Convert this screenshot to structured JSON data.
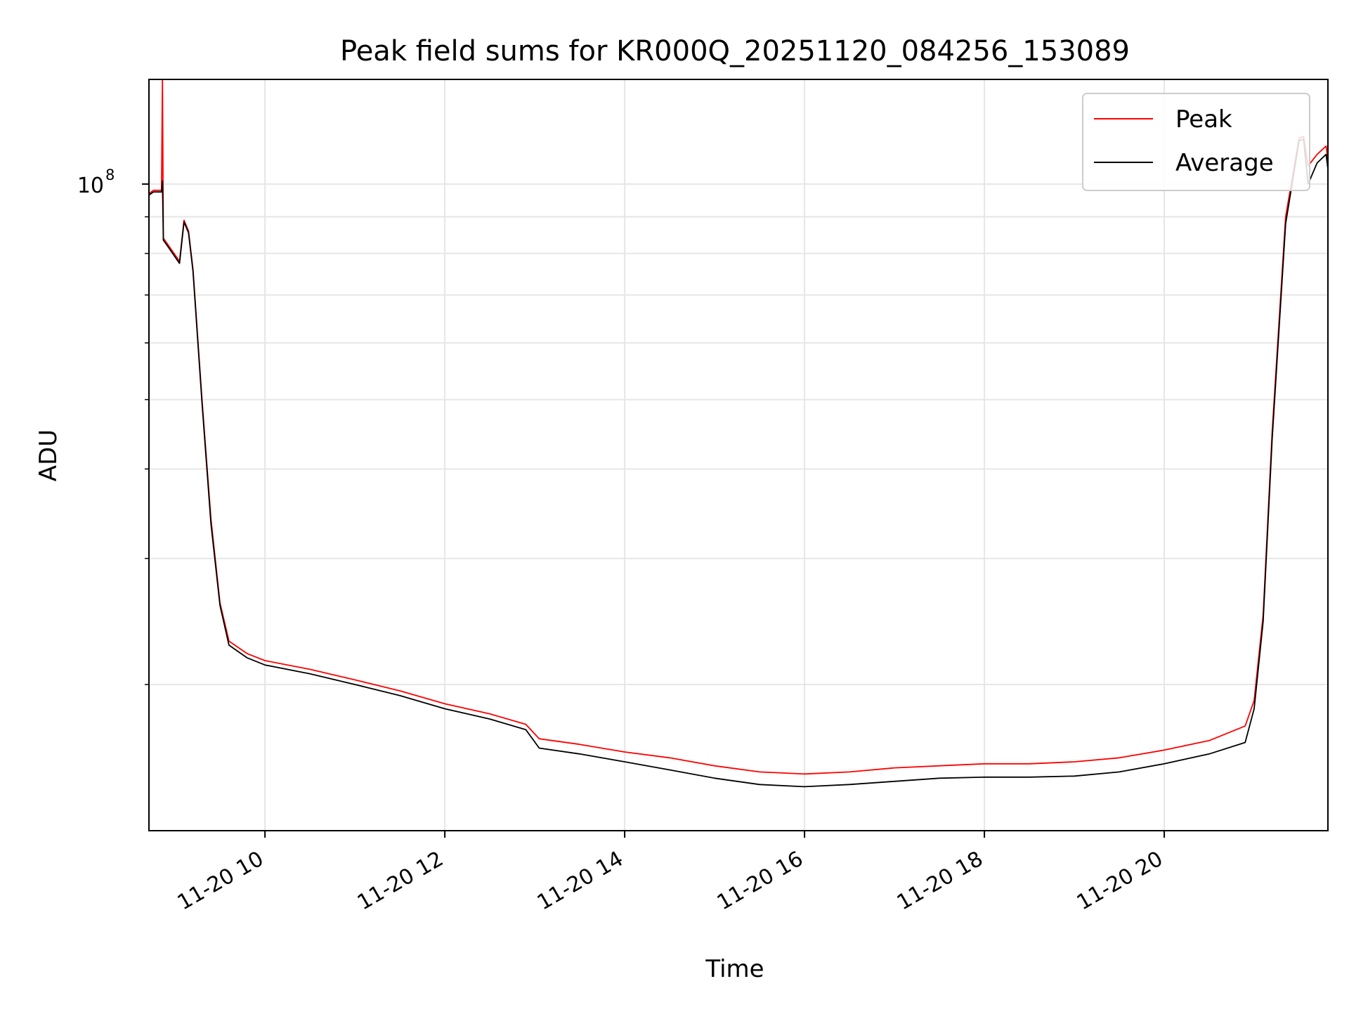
{
  "chart_data": {
    "type": "line",
    "title": "Peak field sums for KR000Q_20251120_084256_153089",
    "xlabel": "Time",
    "ylabel": "ADU",
    "y_scale": "log",
    "x_unit": "hours since 2025-11-20 00:00",
    "xlim": [
      8.71,
      21.82
    ],
    "ylim": [
      12500000,
      140000000
    ],
    "x_ticks": [
      {
        "value": 10,
        "label": "11-20 10"
      },
      {
        "value": 12,
        "label": "11-20 12"
      },
      {
        "value": 14,
        "label": "11-20 14"
      },
      {
        "value": 16,
        "label": "11-20 16"
      },
      {
        "value": 18,
        "label": "11-20 18"
      },
      {
        "value": 20,
        "label": "11-20 20"
      }
    ],
    "y_major_tick": {
      "value": 100000000,
      "label": "10",
      "exponent": "8"
    },
    "y_minor_ticks": [
      20000000,
      30000000,
      40000000,
      50000000,
      60000000,
      70000000,
      80000000,
      90000000
    ],
    "grid": true,
    "legend_position": "top-right",
    "series": [
      {
        "name": "Peak",
        "color": "#ff0000",
        "x": [
          8.71,
          8.76,
          8.85,
          8.86,
          8.87,
          8.9,
          9.05,
          9.1,
          9.15,
          9.2,
          9.3,
          9.4,
          9.5,
          9.6,
          9.8,
          10.0,
          10.5,
          11.0,
          11.5,
          12.0,
          12.5,
          12.9,
          13.05,
          13.5,
          14.0,
          14.5,
          15.0,
          15.5,
          16.0,
          16.5,
          17.0,
          17.5,
          18.0,
          18.5,
          19.0,
          19.5,
          20.0,
          20.5,
          20.9,
          21.0,
          21.1,
          21.2,
          21.35,
          21.5,
          21.55,
          21.6,
          21.7,
          21.8,
          21.82
        ],
        "y": [
          97000000,
          98000000,
          98000000,
          140000000,
          84000000,
          83000000,
          78000000,
          89000000,
          86000000,
          76000000,
          50000000,
          34000000,
          26000000,
          23000000,
          22100000,
          21600000,
          21000000,
          20300000,
          19600000,
          18800000,
          18200000,
          17600000,
          16800000,
          16500000,
          16100000,
          15800000,
          15400000,
          15100000,
          15000000,
          15100000,
          15300000,
          15400000,
          15500000,
          15500000,
          15600000,
          15800000,
          16200000,
          16700000,
          17500000,
          19000000,
          25000000,
          45000000,
          90000000,
          116000000,
          116500000,
          106000000,
          110000000,
          113000000,
          108000000
        ]
      },
      {
        "name": "Average",
        "color": "#000000",
        "x": [
          8.71,
          8.76,
          8.85,
          8.86,
          8.87,
          8.9,
          9.05,
          9.1,
          9.15,
          9.2,
          9.3,
          9.4,
          9.5,
          9.6,
          9.8,
          10.0,
          10.5,
          11.0,
          11.5,
          12.0,
          12.5,
          12.9,
          13.05,
          13.5,
          14.0,
          14.5,
          15.0,
          15.5,
          16.0,
          16.5,
          17.0,
          17.5,
          18.0,
          18.5,
          19.0,
          19.5,
          20.0,
          20.5,
          20.9,
          21.0,
          21.1,
          21.2,
          21.35,
          21.5,
          21.55,
          21.6,
          21.7,
          21.8,
          21.82
        ],
        "y": [
          96500000,
          97500000,
          97500000,
          101000000,
          83500000,
          82500000,
          77500000,
          88500000,
          85500000,
          75500000,
          49500000,
          33500000,
          25800000,
          22700000,
          21800000,
          21300000,
          20700000,
          20000000,
          19300000,
          18500000,
          17900000,
          17300000,
          16300000,
          16000000,
          15600000,
          15200000,
          14800000,
          14500000,
          14400000,
          14500000,
          14650000,
          14800000,
          14850000,
          14850000,
          14900000,
          15100000,
          15500000,
          16000000,
          16600000,
          18500000,
          24500000,
          44000000,
          88000000,
          115000000,
          115500000,
          100000000,
          107000000,
          110000000,
          105000000
        ]
      }
    ]
  }
}
